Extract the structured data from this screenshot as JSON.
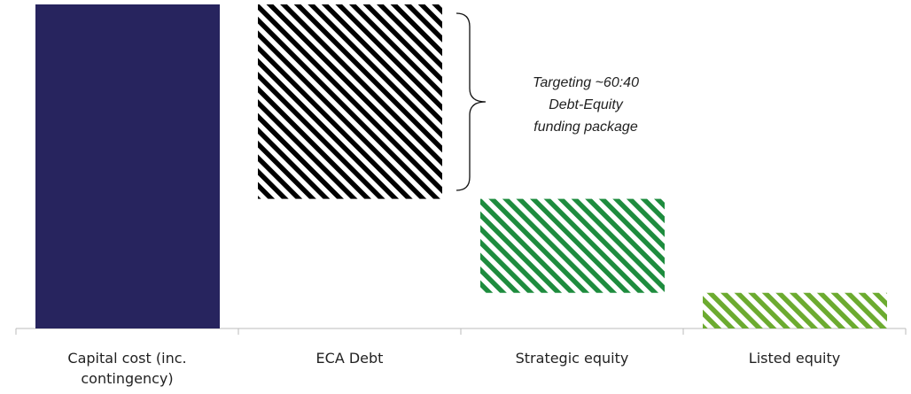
{
  "chart_data": {
    "type": "waterfall",
    "categories": [
      "Capital cost (inc. contingency)",
      "ECA Debt",
      "Strategic equity",
      "Listed equity"
    ],
    "values": [
      100,
      60,
      29,
      11
    ],
    "colors": [
      "#27245e",
      "#000000",
      "#1e8c3e",
      "#6cab30"
    ],
    "patterns": [
      "solid",
      "hatch",
      "hatch",
      "hatch"
    ],
    "ylim": [
      0,
      100
    ],
    "annotation": [
      "Targeting ~60:40",
      "Debt-Equity",
      "funding package"
    ]
  }
}
